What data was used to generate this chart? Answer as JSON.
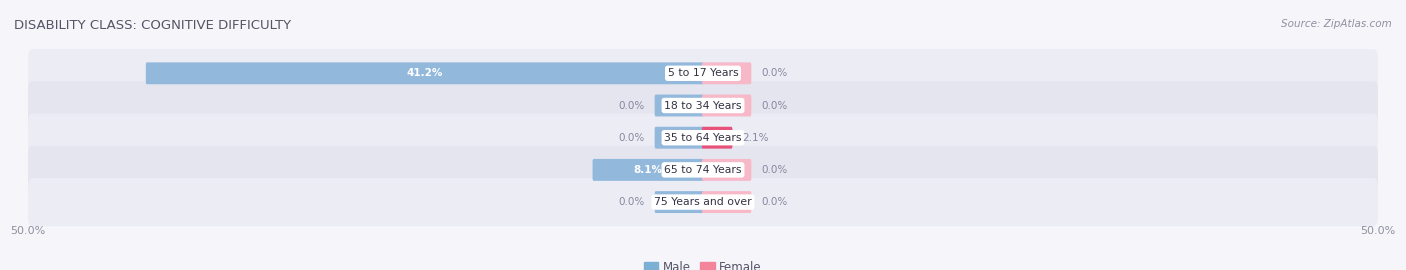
{
  "title": "DISABILITY CLASS: COGNITIVE DIFFICULTY",
  "source": "Source: ZipAtlas.com",
  "categories": [
    "5 to 17 Years",
    "18 to 34 Years",
    "35 to 64 Years",
    "65 to 74 Years",
    "75 Years and over"
  ],
  "male_values": [
    41.2,
    0.0,
    0.0,
    8.1,
    0.0
  ],
  "female_values": [
    0.0,
    0.0,
    2.1,
    0.0,
    0.0
  ],
  "male_stub": 3.5,
  "female_stub": 3.5,
  "xlim": 50.0,
  "male_color": "#92b8dc",
  "female_color": "#f7b8c8",
  "female_color_35_64": "#e8527a",
  "row_colors": [
    "#ecedf4",
    "#e4e5ee",
    "#ecedf4",
    "#e4e5ee",
    "#ecedf4"
  ],
  "label_color": "#9090a0",
  "title_color": "#555566",
  "bar_height": 0.52,
  "legend_male_color": "#7bafd4",
  "legend_female_color": "#f4849a",
  "value_label_color": "#8888a0"
}
